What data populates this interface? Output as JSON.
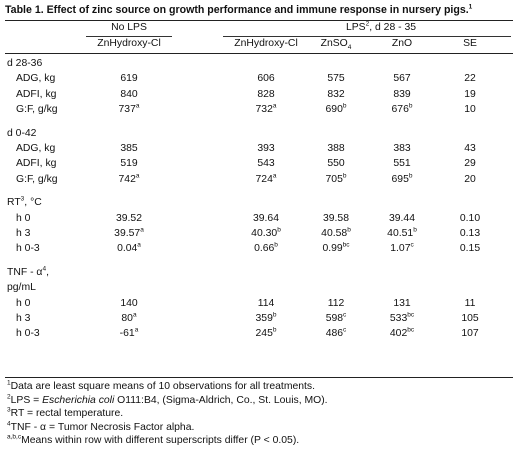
{
  "title": "Table 1. Effect of zinc source on growth performance and immune response in nursery pigs.",
  "title_sup": "1",
  "header": {
    "no_lps": "No LPS",
    "lps_group": "LPS",
    "lps_group_sup": "2",
    "lps_group_suffix": ", d 28 - 35",
    "col_znhydroxy_nolps": "ZnHydroxy-Cl",
    "col_znhydroxy_lps": "ZnHydroxy-Cl",
    "col_znso4": "ZnSO",
    "col_znso4_sub": "4",
    "col_zno": "ZnO",
    "col_se": "SE"
  },
  "sections": [
    {
      "heading": "d 28-36",
      "heading_sup": "",
      "heading_suffix": "",
      "heading2": "",
      "rows": [
        {
          "label": "ADG, kg",
          "v": [
            [
              "619",
              ""
            ],
            [
              "606",
              ""
            ],
            [
              "575",
              ""
            ],
            [
              "567",
              ""
            ],
            [
              "22",
              ""
            ]
          ]
        },
        {
          "label": "ADFI, kg",
          "v": [
            [
              "840",
              ""
            ],
            [
              "828",
              ""
            ],
            [
              "832",
              ""
            ],
            [
              "839",
              ""
            ],
            [
              "19",
              ""
            ]
          ]
        },
        {
          "label": "G:F, g/kg",
          "v": [
            [
              "737",
              "a"
            ],
            [
              "732",
              "a"
            ],
            [
              "690",
              "b"
            ],
            [
              "676",
              "b"
            ],
            [
              "10",
              ""
            ]
          ]
        }
      ]
    },
    {
      "heading": "d 0-42",
      "heading_sup": "",
      "heading_suffix": "",
      "heading2": "",
      "rows": [
        {
          "label": "ADG, kg",
          "v": [
            [
              "385",
              ""
            ],
            [
              "393",
              ""
            ],
            [
              "388",
              ""
            ],
            [
              "383",
              ""
            ],
            [
              "43",
              ""
            ]
          ]
        },
        {
          "label": "ADFI, kg",
          "v": [
            [
              "519",
              ""
            ],
            [
              "543",
              ""
            ],
            [
              "550",
              ""
            ],
            [
              "551",
              ""
            ],
            [
              "29",
              ""
            ]
          ]
        },
        {
          "label": "G:F, g/kg",
          "v": [
            [
              "742",
              "a"
            ],
            [
              "724",
              "a"
            ],
            [
              "705",
              "b"
            ],
            [
              "695",
              "b"
            ],
            [
              "20",
              ""
            ]
          ]
        }
      ]
    },
    {
      "heading": "RT",
      "heading_sup": "3",
      "heading_suffix": ", °C",
      "heading2": "",
      "rows": [
        {
          "label": "h 0",
          "v": [
            [
              "39.52",
              ""
            ],
            [
              "39.64",
              ""
            ],
            [
              "39.58",
              ""
            ],
            [
              "39.44",
              ""
            ],
            [
              "0.10",
              ""
            ]
          ]
        },
        {
          "label": "h 3",
          "v": [
            [
              "39.57",
              "a"
            ],
            [
              "40.30",
              "b"
            ],
            [
              "40.58",
              "b"
            ],
            [
              "40.51",
              "b"
            ],
            [
              "0.13",
              ""
            ]
          ]
        },
        {
          "label": "h 0-3",
          "v": [
            [
              "0.04",
              "a"
            ],
            [
              "0.66",
              "b"
            ],
            [
              "0.99",
              "bc"
            ],
            [
              "1.07",
              "c"
            ],
            [
              "0.15",
              ""
            ]
          ]
        }
      ]
    },
    {
      "heading": "TNF - α",
      "heading_sup": "4",
      "heading_suffix": ",",
      "heading2": "pg/mL",
      "rows": [
        {
          "label": "h 0",
          "v": [
            [
              "140",
              ""
            ],
            [
              "114",
              ""
            ],
            [
              "112",
              ""
            ],
            [
              "131",
              ""
            ],
            [
              "11",
              ""
            ]
          ]
        },
        {
          "label": "h 3",
          "v": [
            [
              "80",
              "a"
            ],
            [
              "359",
              "b"
            ],
            [
              "598",
              "c"
            ],
            [
              "533",
              "bc"
            ],
            [
              "105",
              ""
            ]
          ]
        },
        {
          "label": "h 0-3",
          "v": [
            [
              "-61",
              "a"
            ],
            [
              "245",
              "b"
            ],
            [
              "486",
              "c"
            ],
            [
              "402",
              "bc"
            ],
            [
              "107",
              ""
            ]
          ]
        }
      ]
    }
  ],
  "footnotes": [
    {
      "sup": "1",
      "parts": [
        {
          "t": "Data are least square means of 10 observations for all treatments.",
          "i": false
        }
      ]
    },
    {
      "sup": "2",
      "parts": [
        {
          "t": "LPS = ",
          "i": false
        },
        {
          "t": "Escherichia coli",
          "i": true
        },
        {
          "t": " O111:B4, (Sigma-Aldrich, Co., St. Louis, MO).",
          "i": false
        }
      ]
    },
    {
      "sup": "3",
      "parts": [
        {
          "t": "RT = rectal temperature.",
          "i": false
        }
      ]
    },
    {
      "sup": "4",
      "parts": [
        {
          "t": "TNF - α = Tumor Necrosis Factor alpha.",
          "i": false
        }
      ]
    },
    {
      "sup": "a,b,c",
      "parts": [
        {
          "t": "Means within row with different superscripts differ (P < 0.05).",
          "i": false
        }
      ]
    }
  ]
}
